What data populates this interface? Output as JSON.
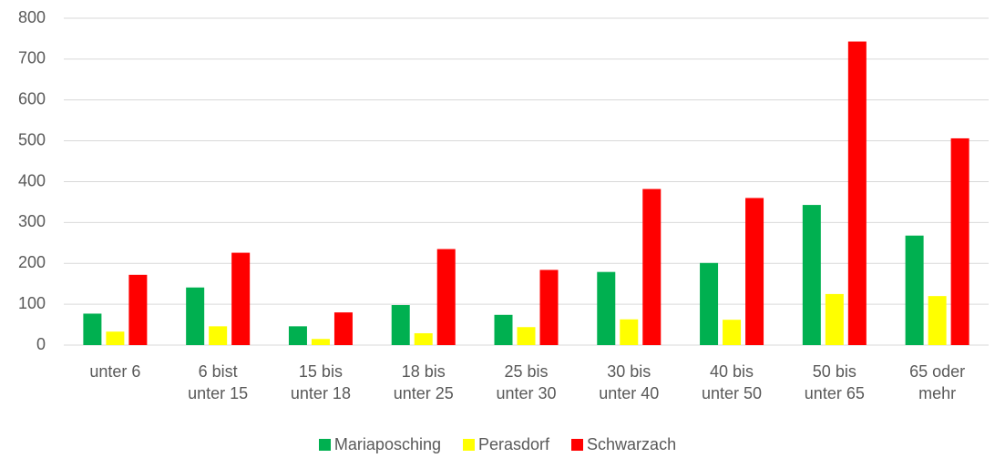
{
  "chart_data": {
    "type": "bar",
    "categories": [
      "unter 6",
      "6 bist unter 15",
      "15 bis unter 18",
      "18 bis unter 25",
      "25 bis unter 30",
      "30 bis unter 40",
      "40 bis unter 50",
      "50 bis unter 65",
      "65 oder mehr"
    ],
    "series": [
      {
        "name": "Mariaposching",
        "color": "#00b050",
        "values": [
          77,
          141,
          46,
          98,
          74,
          179,
          201,
          343,
          268
        ]
      },
      {
        "name": "Perasdorf",
        "color": "#ffff00",
        "values": [
          33,
          46,
          15,
          29,
          44,
          63,
          62,
          125,
          120
        ]
      },
      {
        "name": "Schwarzach",
        "color": "#ff0000",
        "values": [
          172,
          226,
          80,
          235,
          184,
          382,
          360,
          743,
          506
        ]
      }
    ],
    "ylim": [
      0,
      800
    ],
    "yticks": [
      0,
      100,
      200,
      300,
      400,
      500,
      600,
      700,
      800
    ],
    "grid": true,
    "legend": "bottom"
  }
}
